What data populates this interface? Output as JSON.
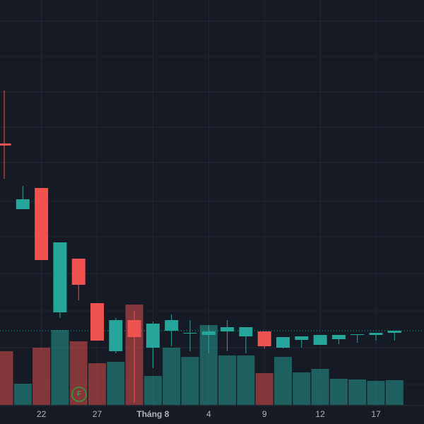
{
  "chart_data": {
    "type": "candlestick",
    "categories": [
      null,
      null,
      "22",
      null,
      null,
      "27",
      null,
      null,
      "Tháng 8",
      null,
      null,
      "4",
      null,
      null,
      "9",
      null,
      null,
      "12",
      null,
      null,
      "17",
      null
    ],
    "open": [
      397,
      304,
      334,
      158,
      234,
      171,
      103,
      147,
      108,
      132,
      128,
      126,
      131,
      124,
      131,
      108,
      119,
      112,
      120,
      127,
      126,
      129
    ],
    "high": [
      472,
      337,
      334,
      257,
      234,
      171,
      150,
      160,
      145,
      155,
      147,
      140,
      147,
      137,
      131,
      123,
      124,
      126,
      126,
      127,
      129,
      132
    ],
    "low": [
      347,
      304,
      232,
      150,
      175,
      118,
      100,
      30,
      79,
      110,
      103,
      100,
      103,
      100,
      107,
      107,
      108,
      112,
      113,
      115,
      118,
      118
    ],
    "close": [
      394,
      318,
      232,
      257,
      197,
      118,
      147,
      123,
      142,
      147,
      129,
      131,
      137,
      137,
      110,
      123,
      124,
      126,
      126,
      127,
      129,
      132
    ],
    "volume": [
      76,
      30,
      81,
      106,
      90,
      59,
      61,
      142,
      41,
      81,
      68,
      113,
      70,
      70,
      45,
      68,
      46,
      51,
      37,
      36,
      34,
      35
    ],
    "up_color": "#26a69a",
    "down_color": "#ef5350",
    "marker_label": "F"
  }
}
